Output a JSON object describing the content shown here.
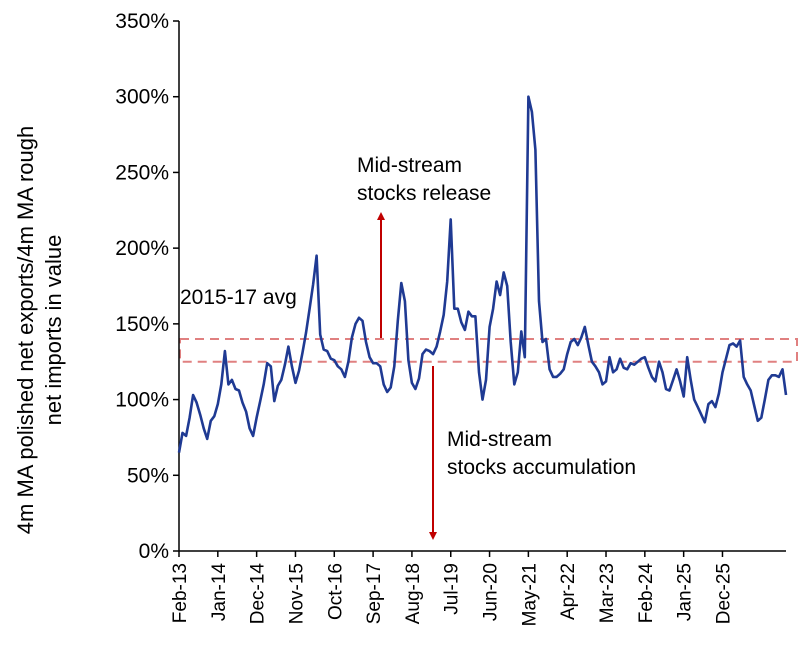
{
  "chart_data": {
    "type": "line",
    "title": "",
    "xlabel": "",
    "ylabel": "4m MA polished net exports/4m MA rough net imports in value",
    "ylim": [
      0,
      350
    ],
    "yticks": [
      "0%",
      "50%",
      "100%",
      "150%",
      "200%",
      "250%",
      "300%",
      "350%"
    ],
    "xticks": [
      "Feb-13",
      "Jan-14",
      "Dec-14",
      "Nov-15",
      "Oct-16",
      "Sep-17",
      "Aug-18",
      "Jul-19",
      "Jun-20",
      "May-21",
      "Apr-22",
      "Mar-23",
      "Feb-24",
      "Jan-25",
      "Dec-25"
    ],
    "grid": false,
    "legend": "none",
    "series": [
      {
        "name": "",
        "color": "#1f3a93",
        "values": [
          65,
          78,
          76,
          88,
          103,
          98,
          90,
          81,
          74,
          86,
          89,
          97,
          110,
          132,
          110,
          113,
          107,
          106,
          98,
          92,
          81,
          76,
          88,
          99,
          110,
          124,
          122,
          99,
          109,
          113,
          123,
          135,
          122,
          111,
          119,
          131,
          144,
          160,
          176,
          195,
          143,
          133,
          132,
          127,
          126,
          122,
          120,
          115,
          125,
          141,
          150,
          154,
          152,
          138,
          128,
          124,
          124,
          122,
          110,
          105,
          108,
          122,
          152,
          177,
          165,
          126,
          111,
          107,
          114,
          130,
          133,
          132,
          130,
          135,
          145,
          156,
          178,
          219,
          160,
          160,
          151,
          146,
          158,
          155,
          155,
          118,
          100,
          113,
          148,
          160,
          178,
          169,
          184,
          175,
          138,
          110,
          118,
          145,
          128,
          300,
          290,
          265,
          165,
          138,
          140,
          120,
          115,
          115,
          117,
          120,
          130,
          138,
          140,
          136,
          141,
          148,
          136,
          125,
          122,
          118,
          110,
          112,
          128,
          118,
          120,
          127,
          121,
          120,
          124,
          123,
          125,
          127,
          128,
          121,
          115,
          112,
          125,
          118,
          107,
          106,
          113,
          120,
          112,
          102,
          128,
          113,
          100,
          95,
          90,
          85,
          97,
          99,
          95,
          104,
          118,
          127,
          136,
          137,
          135,
          139,
          115,
          110,
          106,
          96,
          86,
          88,
          100,
          113,
          116,
          116,
          115,
          120,
          103
        ]
      }
    ],
    "reference_band": {
      "label": "2015-17 avg",
      "low": 125,
      "high": 140,
      "color": "#e08080"
    },
    "annotations": [
      {
        "text_line1": "Mid-stream",
        "text_line2": "stocks release",
        "arrow": "up",
        "color": "#c00000"
      },
      {
        "text_line1": "Mid-stream",
        "text_line2": "stocks accumulation",
        "arrow": "down",
        "color": "#c00000"
      }
    ]
  }
}
